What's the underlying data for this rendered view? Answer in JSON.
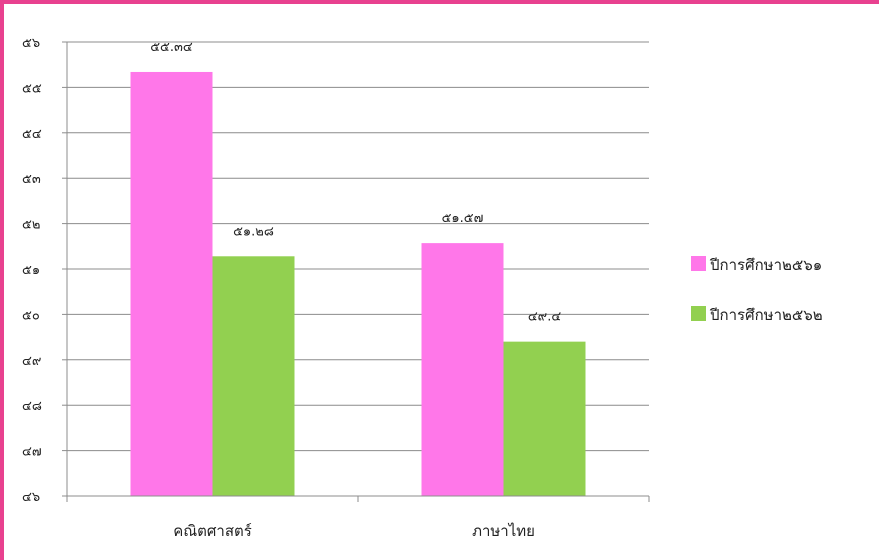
{
  "chart_data": {
    "type": "bar",
    "title": "",
    "xlabel": "",
    "ylabel": "",
    "categories": [
      "คณิตศาสตร์",
      "ภาษาไทย"
    ],
    "series": [
      {
        "name": "ปีการศึกษา๒๕๖๑",
        "values": [
          55.34,
          51.57
        ],
        "value_labels": [
          "๕๕.๓๔",
          "๕๑.๕๗"
        ],
        "color": "#ff77e9"
      },
      {
        "name": "ปีการศึกษา๒๕๖๒",
        "values": [
          51.28,
          49.4
        ],
        "value_labels": [
          "๕๑.๒๘",
          "๔๙.๔"
        ],
        "color": "#92d050"
      }
    ],
    "ylim": [
      46,
      56
    ],
    "yticks": [
      46,
      47,
      48,
      49,
      50,
      51,
      52,
      53,
      54,
      55,
      56
    ],
    "ytick_labels": [
      "๔๖",
      "๔๗",
      "๔๘",
      "๔๙",
      "๕๐",
      "๕๑",
      "๕๒",
      "๕๓",
      "๕๔",
      "๕๕",
      "๕๖"
    ],
    "grid": true,
    "legend_position": "right",
    "frame_color": "#e8418f"
  }
}
